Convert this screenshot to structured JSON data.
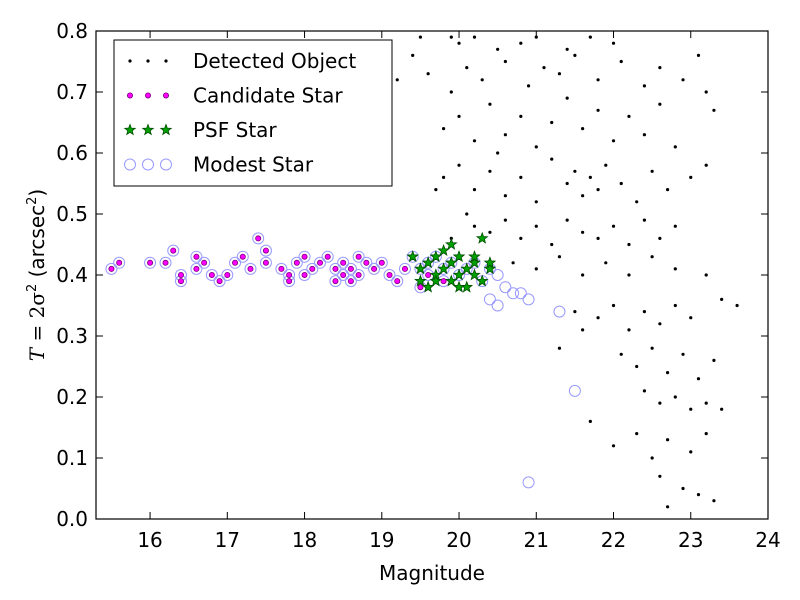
{
  "chart_data": {
    "type": "scatter",
    "xlabel": "Magnitude",
    "ylabel_parts": [
      "T",
      " = 2σ",
      "2",
      " (arcsec",
      "2",
      ")"
    ],
    "xlim": [
      15.3,
      24.0
    ],
    "ylim": [
      0.0,
      0.8
    ],
    "xticks": [
      "16",
      "17",
      "18",
      "19",
      "20",
      "21",
      "22",
      "23",
      "24"
    ],
    "yticks": [
      "0.0",
      "0.1",
      "0.2",
      "0.3",
      "0.4",
      "0.5",
      "0.6",
      "0.7",
      "0.8"
    ],
    "grid": false,
    "legend_position": "top-left",
    "series": [
      {
        "name": "Detected Object",
        "marker": "dot",
        "color": "#000000",
        "points": [
          [
            19.5,
            0.79
          ],
          [
            19.9,
            0.79
          ],
          [
            20.0,
            0.78
          ],
          [
            20.2,
            0.79
          ],
          [
            20.5,
            0.77
          ],
          [
            20.8,
            0.78
          ],
          [
            21.0,
            0.79
          ],
          [
            21.4,
            0.77
          ],
          [
            21.7,
            0.79
          ],
          [
            22.0,
            0.78
          ],
          [
            19.2,
            0.72
          ],
          [
            19.4,
            0.76
          ],
          [
            19.6,
            0.73
          ],
          [
            19.9,
            0.7
          ],
          [
            20.1,
            0.74
          ],
          [
            20.3,
            0.72
          ],
          [
            20.6,
            0.75
          ],
          [
            20.9,
            0.71
          ],
          [
            21.1,
            0.74
          ],
          [
            21.3,
            0.73
          ],
          [
            21.5,
            0.76
          ],
          [
            21.8,
            0.72
          ],
          [
            22.1,
            0.75
          ],
          [
            22.4,
            0.71
          ],
          [
            22.6,
            0.74
          ],
          [
            22.9,
            0.72
          ],
          [
            23.1,
            0.76
          ],
          [
            19.8,
            0.64
          ],
          [
            20.0,
            0.66
          ],
          [
            20.2,
            0.62
          ],
          [
            20.4,
            0.68
          ],
          [
            20.6,
            0.63
          ],
          [
            20.8,
            0.66
          ],
          [
            21.0,
            0.61
          ],
          [
            21.2,
            0.65
          ],
          [
            21.4,
            0.69
          ],
          [
            21.6,
            0.64
          ],
          [
            21.8,
            0.67
          ],
          [
            22.0,
            0.62
          ],
          [
            22.2,
            0.66
          ],
          [
            22.4,
            0.63
          ],
          [
            22.6,
            0.68
          ],
          [
            22.8,
            0.61
          ],
          [
            23.2,
            0.58
          ],
          [
            19.8,
            0.56
          ],
          [
            20.0,
            0.58
          ],
          [
            20.2,
            0.54
          ],
          [
            20.4,
            0.57
          ],
          [
            20.6,
            0.53
          ],
          [
            20.8,
            0.56
          ],
          [
            21.0,
            0.52
          ],
          [
            21.2,
            0.59
          ],
          [
            21.4,
            0.55
          ],
          [
            21.5,
            0.57
          ],
          [
            21.6,
            0.53
          ],
          [
            21.7,
            0.56
          ],
          [
            21.8,
            0.54
          ],
          [
            21.9,
            0.58
          ],
          [
            22.1,
            0.55
          ],
          [
            22.3,
            0.52
          ],
          [
            22.5,
            0.57
          ],
          [
            22.7,
            0.54
          ],
          [
            23.0,
            0.56
          ],
          [
            20.2,
            0.48
          ],
          [
            20.4,
            0.47
          ],
          [
            20.6,
            0.49
          ],
          [
            20.8,
            0.46
          ],
          [
            21.0,
            0.48
          ],
          [
            21.2,
            0.45
          ],
          [
            21.4,
            0.49
          ],
          [
            21.6,
            0.47
          ],
          [
            21.8,
            0.46
          ],
          [
            22.0,
            0.48
          ],
          [
            22.2,
            0.45
          ],
          [
            22.4,
            0.49
          ],
          [
            22.6,
            0.46
          ],
          [
            22.8,
            0.48
          ],
          [
            20.7,
            0.42
          ],
          [
            21.0,
            0.41
          ],
          [
            21.3,
            0.43
          ],
          [
            21.6,
            0.4
          ],
          [
            21.9,
            0.42
          ],
          [
            22.2,
            0.4
          ],
          [
            22.5,
            0.43
          ],
          [
            22.8,
            0.41
          ],
          [
            23.2,
            0.4
          ],
          [
            21.5,
            0.34
          ],
          [
            21.8,
            0.33
          ],
          [
            22.0,
            0.35
          ],
          [
            22.2,
            0.31
          ],
          [
            22.4,
            0.34
          ],
          [
            22.6,
            0.32
          ],
          [
            22.8,
            0.35
          ],
          [
            23.0,
            0.33
          ],
          [
            23.4,
            0.36
          ],
          [
            23.6,
            0.35
          ],
          [
            22.1,
            0.27
          ],
          [
            22.3,
            0.25
          ],
          [
            22.5,
            0.28
          ],
          [
            22.7,
            0.24
          ],
          [
            22.9,
            0.27
          ],
          [
            23.1,
            0.23
          ],
          [
            23.3,
            0.26
          ],
          [
            21.3,
            0.28
          ],
          [
            21.6,
            0.31
          ],
          [
            22.4,
            0.21
          ],
          [
            22.6,
            0.19
          ],
          [
            22.8,
            0.2
          ],
          [
            23.0,
            0.18
          ],
          [
            23.2,
            0.19
          ],
          [
            23.4,
            0.18
          ],
          [
            21.7,
            0.16
          ],
          [
            22.0,
            0.12
          ],
          [
            22.3,
            0.14
          ],
          [
            22.5,
            0.1
          ],
          [
            22.7,
            0.13
          ],
          [
            23.0,
            0.11
          ],
          [
            23.2,
            0.14
          ],
          [
            22.6,
            0.07
          ],
          [
            22.9,
            0.05
          ],
          [
            23.1,
            0.04
          ],
          [
            22.7,
            0.02
          ],
          [
            23.3,
            0.03
          ],
          [
            19.7,
            0.54
          ],
          [
            19.9,
            0.46
          ],
          [
            20.1,
            0.5
          ],
          [
            20.5,
            0.6
          ],
          [
            23.2,
            0.7
          ],
          [
            23.3,
            0.67
          ]
        ]
      },
      {
        "name": "Candidate Star",
        "marker": "circle-magenta",
        "color": "#ff00ff",
        "points": [
          [
            15.5,
            0.41
          ],
          [
            15.6,
            0.42
          ],
          [
            16.0,
            0.42
          ],
          [
            16.2,
            0.42
          ],
          [
            16.3,
            0.44
          ],
          [
            16.4,
            0.4
          ],
          [
            16.4,
            0.39
          ],
          [
            16.6,
            0.43
          ],
          [
            16.6,
            0.41
          ],
          [
            16.7,
            0.42
          ],
          [
            16.8,
            0.4
          ],
          [
            16.9,
            0.39
          ],
          [
            17.0,
            0.4
          ],
          [
            17.1,
            0.42
          ],
          [
            17.2,
            0.43
          ],
          [
            17.3,
            0.41
          ],
          [
            17.4,
            0.46
          ],
          [
            17.5,
            0.42
          ],
          [
            17.5,
            0.44
          ],
          [
            17.7,
            0.41
          ],
          [
            17.8,
            0.39
          ],
          [
            17.8,
            0.4
          ],
          [
            17.9,
            0.42
          ],
          [
            18.0,
            0.43
          ],
          [
            18.0,
            0.4
          ],
          [
            18.1,
            0.41
          ],
          [
            18.2,
            0.42
          ],
          [
            18.3,
            0.43
          ],
          [
            18.4,
            0.41
          ],
          [
            18.4,
            0.39
          ],
          [
            18.5,
            0.4
          ],
          [
            18.5,
            0.42
          ],
          [
            18.6,
            0.41
          ],
          [
            18.6,
            0.39
          ],
          [
            18.7,
            0.43
          ],
          [
            18.7,
            0.4
          ],
          [
            18.8,
            0.42
          ],
          [
            18.9,
            0.41
          ],
          [
            19.0,
            0.42
          ],
          [
            19.1,
            0.4
          ],
          [
            19.2,
            0.39
          ],
          [
            19.3,
            0.41
          ],
          [
            19.5,
            0.38
          ],
          [
            19.6,
            0.4
          ],
          [
            19.8,
            0.39
          ]
        ]
      },
      {
        "name": "PSF Star",
        "marker": "star",
        "color": "#00a000",
        "points": [
          [
            19.4,
            0.43
          ],
          [
            19.5,
            0.41
          ],
          [
            19.5,
            0.39
          ],
          [
            19.6,
            0.42
          ],
          [
            19.6,
            0.38
          ],
          [
            19.7,
            0.43
          ],
          [
            19.7,
            0.4
          ],
          [
            19.8,
            0.41
          ],
          [
            19.8,
            0.44
          ],
          [
            19.9,
            0.42
          ],
          [
            19.9,
            0.39
          ],
          [
            20.0,
            0.4
          ],
          [
            20.0,
            0.43
          ],
          [
            20.1,
            0.41
          ],
          [
            20.1,
            0.38
          ],
          [
            20.2,
            0.42
          ],
          [
            20.2,
            0.4
          ],
          [
            20.3,
            0.46
          ],
          [
            20.3,
            0.39
          ],
          [
            20.4,
            0.41
          ],
          [
            20.4,
            0.42
          ],
          [
            19.9,
            0.45
          ],
          [
            20.0,
            0.38
          ],
          [
            19.7,
            0.39
          ],
          [
            20.2,
            0.43
          ]
        ]
      },
      {
        "name": "Modest Star",
        "marker": "circle-open",
        "color": "#9999ff",
        "points": [
          [
            15.5,
            0.41
          ],
          [
            15.6,
            0.42
          ],
          [
            16.0,
            0.42
          ],
          [
            16.2,
            0.42
          ],
          [
            16.3,
            0.44
          ],
          [
            16.4,
            0.4
          ],
          [
            16.4,
            0.39
          ],
          [
            16.6,
            0.43
          ],
          [
            16.6,
            0.41
          ],
          [
            16.7,
            0.42
          ],
          [
            16.8,
            0.4
          ],
          [
            16.9,
            0.39
          ],
          [
            17.0,
            0.4
          ],
          [
            17.1,
            0.42
          ],
          [
            17.2,
            0.43
          ],
          [
            17.3,
            0.41
          ],
          [
            17.4,
            0.46
          ],
          [
            17.5,
            0.42
          ],
          [
            17.5,
            0.44
          ],
          [
            17.7,
            0.41
          ],
          [
            17.8,
            0.39
          ],
          [
            17.8,
            0.4
          ],
          [
            17.9,
            0.42
          ],
          [
            18.0,
            0.43
          ],
          [
            18.0,
            0.4
          ],
          [
            18.1,
            0.41
          ],
          [
            18.2,
            0.42
          ],
          [
            18.3,
            0.43
          ],
          [
            18.4,
            0.41
          ],
          [
            18.4,
            0.39
          ],
          [
            18.5,
            0.4
          ],
          [
            18.5,
            0.42
          ],
          [
            18.6,
            0.41
          ],
          [
            18.6,
            0.39
          ],
          [
            18.7,
            0.43
          ],
          [
            18.7,
            0.4
          ],
          [
            18.8,
            0.42
          ],
          [
            18.9,
            0.41
          ],
          [
            19.0,
            0.42
          ],
          [
            19.1,
            0.4
          ],
          [
            19.2,
            0.39
          ],
          [
            19.3,
            0.41
          ],
          [
            19.5,
            0.38
          ],
          [
            19.6,
            0.4
          ],
          [
            19.8,
            0.39
          ],
          [
            19.4,
            0.43
          ],
          [
            19.5,
            0.41
          ],
          [
            19.6,
            0.42
          ],
          [
            19.7,
            0.43
          ],
          [
            19.8,
            0.41
          ],
          [
            19.9,
            0.42
          ],
          [
            20.0,
            0.4
          ],
          [
            20.1,
            0.41
          ],
          [
            20.2,
            0.42
          ],
          [
            20.3,
            0.39
          ],
          [
            20.4,
            0.41
          ],
          [
            20.5,
            0.4
          ],
          [
            20.4,
            0.36
          ],
          [
            20.5,
            0.35
          ],
          [
            20.6,
            0.38
          ],
          [
            20.7,
            0.37
          ],
          [
            20.8,
            0.37
          ],
          [
            20.9,
            0.36
          ],
          [
            21.3,
            0.34
          ],
          [
            21.5,
            0.21
          ],
          [
            20.9,
            0.06
          ]
        ]
      }
    ]
  }
}
